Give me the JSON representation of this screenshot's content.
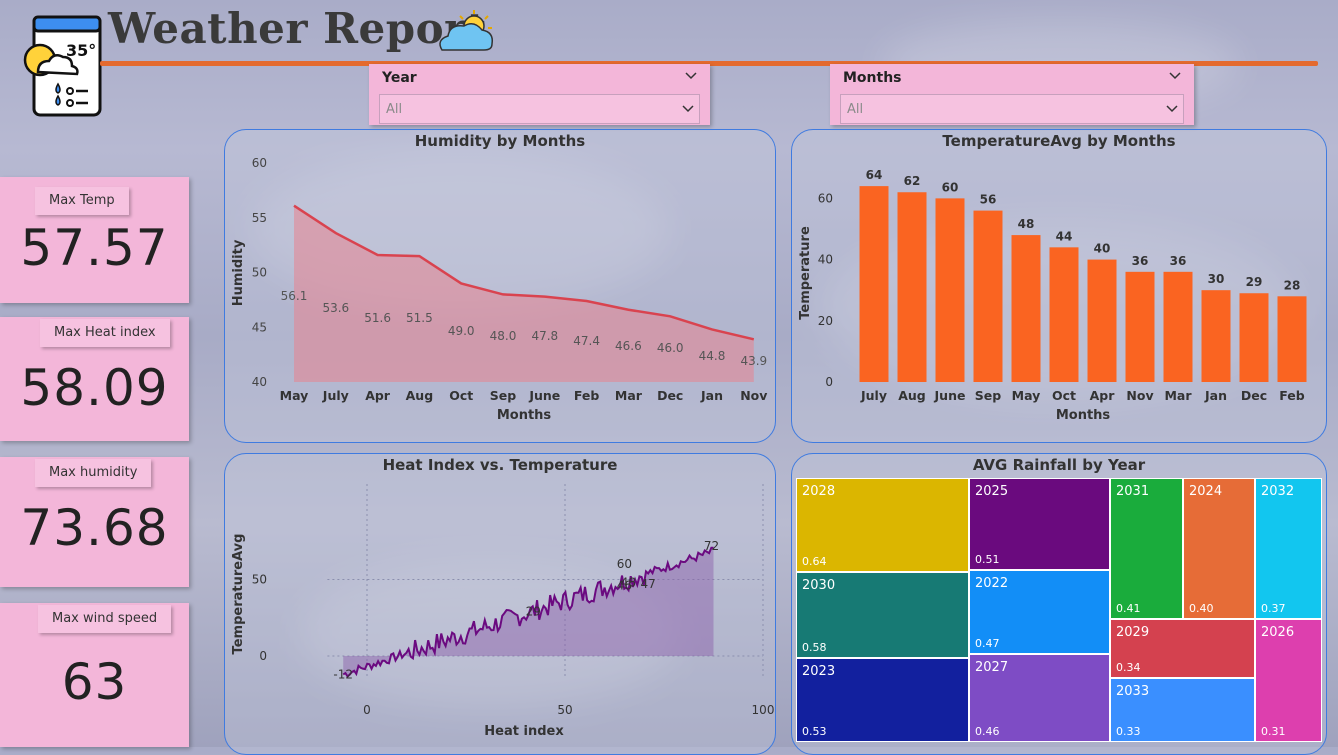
{
  "header": {
    "title": "Weather Report",
    "logo_temp": "35°"
  },
  "slicers": [
    {
      "label": "Year",
      "value": "All"
    },
    {
      "label": "Months",
      "value": "All"
    }
  ],
  "kpis": [
    {
      "caption": "Max Temp",
      "value": "57.57"
    },
    {
      "caption": "Max Heat index",
      "value": "58.09"
    },
    {
      "caption": "Max humidity",
      "value": "73.68"
    },
    {
      "caption": "Max wind speed",
      "value": "63"
    }
  ],
  "humidity_chart": {
    "title": "Humidity by Months"
  },
  "temp_chart": {
    "title": "TemperatureAvg by Months"
  },
  "heat_chart": {
    "title": "Heat Index vs. Temperature"
  },
  "rain_chart": {
    "title": "AVG Rainfall by Year"
  },
  "colors": {
    "area": "#e8838f",
    "line": "#d9434f",
    "bar": "#fa6421",
    "scatter": "#6b0a80"
  },
  "chart_data": [
    {
      "type": "area",
      "title": "Humidity by Months",
      "xlabel": "Months",
      "ylabel": "Humidity",
      "ylim": [
        40,
        60
      ],
      "yticks": [
        40,
        45,
        50,
        55,
        60
      ],
      "categories": [
        "May",
        "July",
        "Apr",
        "Aug",
        "Oct",
        "Sep",
        "June",
        "Feb",
        "Mar",
        "Dec",
        "Jan",
        "Nov"
      ],
      "values": [
        56.1,
        53.6,
        51.6,
        51.5,
        49.0,
        48.0,
        47.8,
        47.4,
        46.6,
        46.0,
        44.8,
        43.9
      ],
      "labels": [
        "56.1",
        "53.6",
        "51.6",
        "51.5",
        "49.0",
        "48.0",
        "47.8",
        "47.4",
        "46.6",
        "46.0",
        "44.8",
        "43.9"
      ]
    },
    {
      "type": "bar",
      "title": "TemperatureAvg by Months",
      "xlabel": "Months",
      "ylabel": "Temperature",
      "ylim": [
        0,
        70
      ],
      "yticks": [
        0,
        20,
        40,
        60
      ],
      "categories": [
        "July",
        "Aug",
        "June",
        "Sep",
        "May",
        "Oct",
        "Apr",
        "Nov",
        "Mar",
        "Jan",
        "Dec",
        "Feb"
      ],
      "values": [
        64,
        62,
        60,
        56,
        48,
        44,
        40,
        36,
        36,
        30,
        29,
        28
      ]
    },
    {
      "type": "line",
      "title": "Heat Index vs. Temperature",
      "xlabel": "Heat index",
      "ylabel": "TemperatureAvg",
      "xlim": [
        -10,
        100
      ],
      "ylim": [
        -15,
        75
      ],
      "xticks": [
        0,
        50,
        100
      ],
      "yticks": [
        0,
        50
      ],
      "annotations": [
        {
          "x": -6,
          "y": -12,
          "text": "-12"
        },
        {
          "x": 42,
          "y": 29,
          "text": "29"
        },
        {
          "x": 65,
          "y": 46,
          "text": "46"
        },
        {
          "x": 65,
          "y": 60,
          "text": "60"
        },
        {
          "x": 71,
          "y": 47,
          "text": "47"
        },
        {
          "x": 87,
          "y": 72,
          "text": "72"
        },
        {
          "x": 66,
          "y": 48,
          "text": "48"
        }
      ]
    },
    {
      "type": "treemap",
      "title": "AVG Rainfall by Year",
      "items": [
        {
          "year": "2028",
          "value": 0.64,
          "color": "#dbb600"
        },
        {
          "year": "2030",
          "value": 0.58,
          "color": "#177a74"
        },
        {
          "year": "2023",
          "value": 0.53,
          "color": "#12209e"
        },
        {
          "year": "2025",
          "value": 0.51,
          "color": "#6a0a7e"
        },
        {
          "year": "2022",
          "value": 0.47,
          "color": "#128ef7"
        },
        {
          "year": "2027",
          "value": 0.46,
          "color": "#7e4cc5"
        },
        {
          "year": "2031",
          "value": 0.41,
          "color": "#1aac3c"
        },
        {
          "year": "2024",
          "value": 0.4,
          "color": "#e66c37"
        },
        {
          "year": "2032",
          "value": 0.37,
          "color": "#12c6ef"
        },
        {
          "year": "2029",
          "value": 0.34,
          "color": "#d4414f"
        },
        {
          "year": "2033",
          "value": 0.33,
          "color": "#3a8fff"
        },
        {
          "year": "2026",
          "value": 0.31,
          "color": "#dd3fae"
        }
      ]
    }
  ]
}
